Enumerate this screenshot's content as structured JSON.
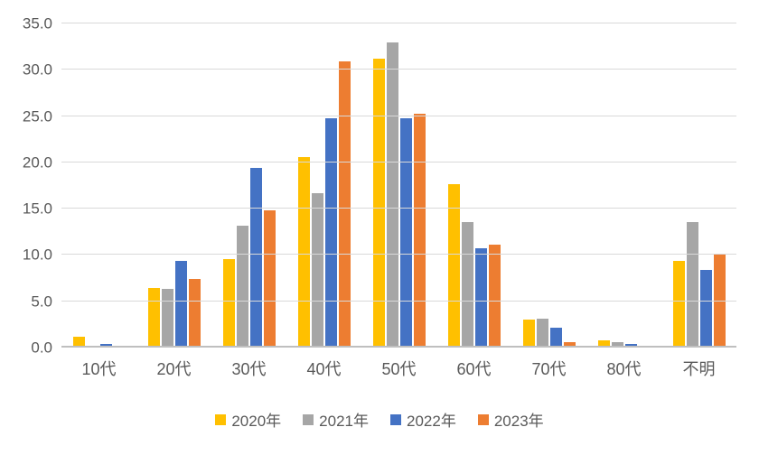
{
  "chart_data": {
    "type": "bar",
    "title": "",
    "xlabel": "",
    "ylabel": "",
    "categories": [
      "10代",
      "20代",
      "30代",
      "40代",
      "50代",
      "60代",
      "70代",
      "80代",
      "不明"
    ],
    "series": [
      {
        "name": "2020年",
        "color": "#FFC000",
        "values": [
          1.2,
          6.4,
          9.6,
          20.6,
          31.2,
          17.6,
          3.0,
          0.8,
          9.4
        ]
      },
      {
        "name": "2021年",
        "color": "#A6A6A6",
        "values": [
          0.0,
          6.3,
          13.2,
          16.7,
          33.0,
          13.6,
          3.1,
          0.6,
          13.6
        ]
      },
      {
        "name": "2022年",
        "color": "#4472C4",
        "values": [
          0.4,
          9.4,
          19.4,
          24.8,
          24.8,
          10.7,
          2.1,
          0.4,
          8.4
        ]
      },
      {
        "name": "2023年",
        "color": "#ED7D31",
        "values": [
          0.0,
          7.4,
          14.8,
          30.9,
          25.3,
          11.1,
          0.6,
          0.0,
          10.0
        ]
      }
    ],
    "ylim": [
      0,
      35
    ],
    "ytick_interval": 5,
    "yticks": [
      "0.0",
      "5.0",
      "10.0",
      "15.0",
      "20.0",
      "25.0",
      "30.0",
      "35.0"
    ],
    "grid": "horizontal",
    "legend_position": "bottom"
  },
  "colors": {
    "background": "#FFFFFF",
    "gridline": "#D9D9D9",
    "axis_line": "#BFBFBF",
    "tick_text": "#595959"
  }
}
